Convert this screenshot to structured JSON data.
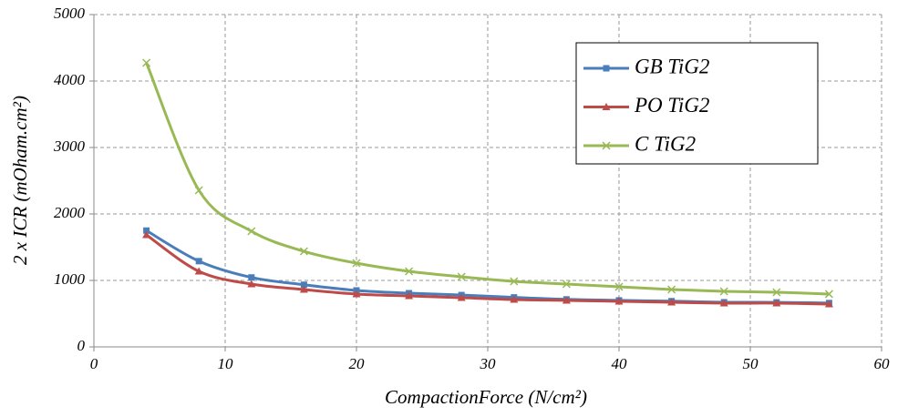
{
  "chart_data": {
    "type": "line",
    "x_label": "CompactionForce (N/cm²)",
    "y_label": "2 x ICR (mOham.cm²)",
    "x": [
      4,
      8,
      12,
      16,
      20,
      24,
      28,
      32,
      36,
      40,
      44,
      48,
      52,
      56
    ],
    "series": [
      {
        "name": "GB TiG2",
        "color": "#4a7ebb",
        "marker": "square",
        "values": [
          1750,
          1290,
          1045,
          935,
          850,
          808,
          780,
          745,
          715,
          700,
          688,
          672,
          670,
          660
        ]
      },
      {
        "name": "PO TiG2",
        "color": "#be4b48",
        "marker": "triangle",
        "values": [
          1685,
          1137,
          945,
          863,
          795,
          767,
          740,
          712,
          699,
          685,
          671,
          658,
          658,
          644
        ]
      },
      {
        "name": "C TiG2",
        "color": "#98b954",
        "marker": "x",
        "values": [
          4274,
          2356,
          1740,
          1438,
          1260,
          1137,
          1055,
          986,
          945,
          904,
          863,
          836,
          822,
          795
        ]
      }
    ],
    "xlim": [
      0,
      60
    ],
    "xticks": [
      0,
      10,
      20,
      30,
      40,
      50,
      60
    ],
    "ylim": [
      0,
      5000
    ],
    "yticks": [
      0,
      1000,
      2000,
      3000,
      4000,
      5000
    ],
    "grid": true,
    "legend": "top-right",
    "smooth": true
  }
}
